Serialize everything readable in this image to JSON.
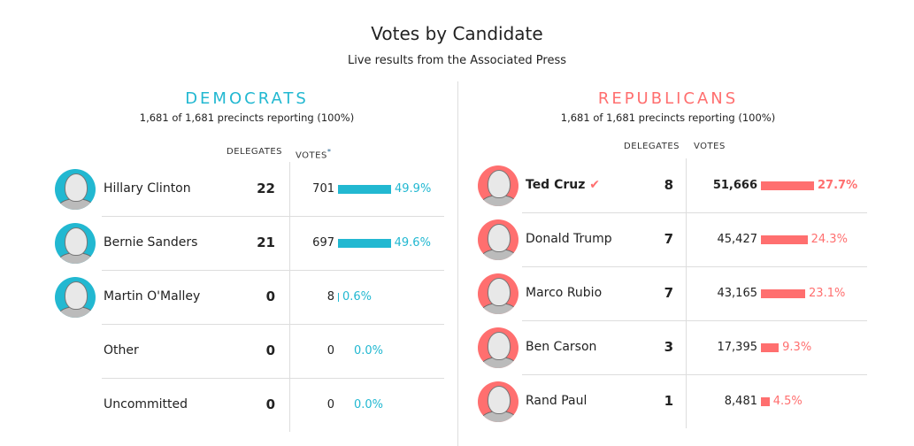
{
  "title": "Votes by Candidate",
  "subtitle": "Live results from the Associated Press",
  "colors": {
    "dem": "#22b8d1",
    "rep": "#ff6f6f"
  },
  "democrats": {
    "heading": "DEMOCRATS",
    "precincts": "1,681 of 1,681 precincts reporting (100%)",
    "col_delegates": "DELEGATES",
    "col_votes": "VOTES",
    "votes_note": "*",
    "candidates": [
      {
        "name": "Hillary Clinton",
        "delegates": "22",
        "votes": "701",
        "pct": "49.9%",
        "pct_value": 49.9,
        "photo": true
      },
      {
        "name": "Bernie Sanders",
        "delegates": "21",
        "votes": "697",
        "pct": "49.6%",
        "pct_value": 49.6,
        "photo": true
      },
      {
        "name": "Martin O'Malley",
        "delegates": "0",
        "votes": "8",
        "pct": "0.6%",
        "pct_value": 0.6,
        "photo": true
      },
      {
        "name": "Other",
        "delegates": "0",
        "votes": "0",
        "pct": "0.0%",
        "pct_value": 0,
        "photo": false
      },
      {
        "name": "Uncommitted",
        "delegates": "0",
        "votes": "0",
        "pct": "0.0%",
        "pct_value": 0,
        "photo": false
      }
    ]
  },
  "republicans": {
    "heading": "REPUBLICANS",
    "precincts": "1,681 of 1,681 precincts reporting (100%)",
    "col_delegates": "DELEGATES",
    "col_votes": "VOTES",
    "candidates": [
      {
        "name": "Ted Cruz",
        "winner": true,
        "check": "✔",
        "delegates": "8",
        "votes": "51,666",
        "pct": "27.7%",
        "pct_value": 27.7,
        "photo": true
      },
      {
        "name": "Donald Trump",
        "delegates": "7",
        "votes": "45,427",
        "pct": "24.3%",
        "pct_value": 24.3,
        "photo": true
      },
      {
        "name": "Marco Rubio",
        "delegates": "7",
        "votes": "43,165",
        "pct": "23.1%",
        "pct_value": 23.1,
        "photo": true
      },
      {
        "name": "Ben Carson",
        "delegates": "3",
        "votes": "17,395",
        "pct": "9.3%",
        "pct_value": 9.3,
        "photo": true
      },
      {
        "name": "Rand Paul",
        "delegates": "1",
        "votes": "8,481",
        "pct": "4.5%",
        "pct_value": 4.5,
        "photo": true
      }
    ]
  }
}
